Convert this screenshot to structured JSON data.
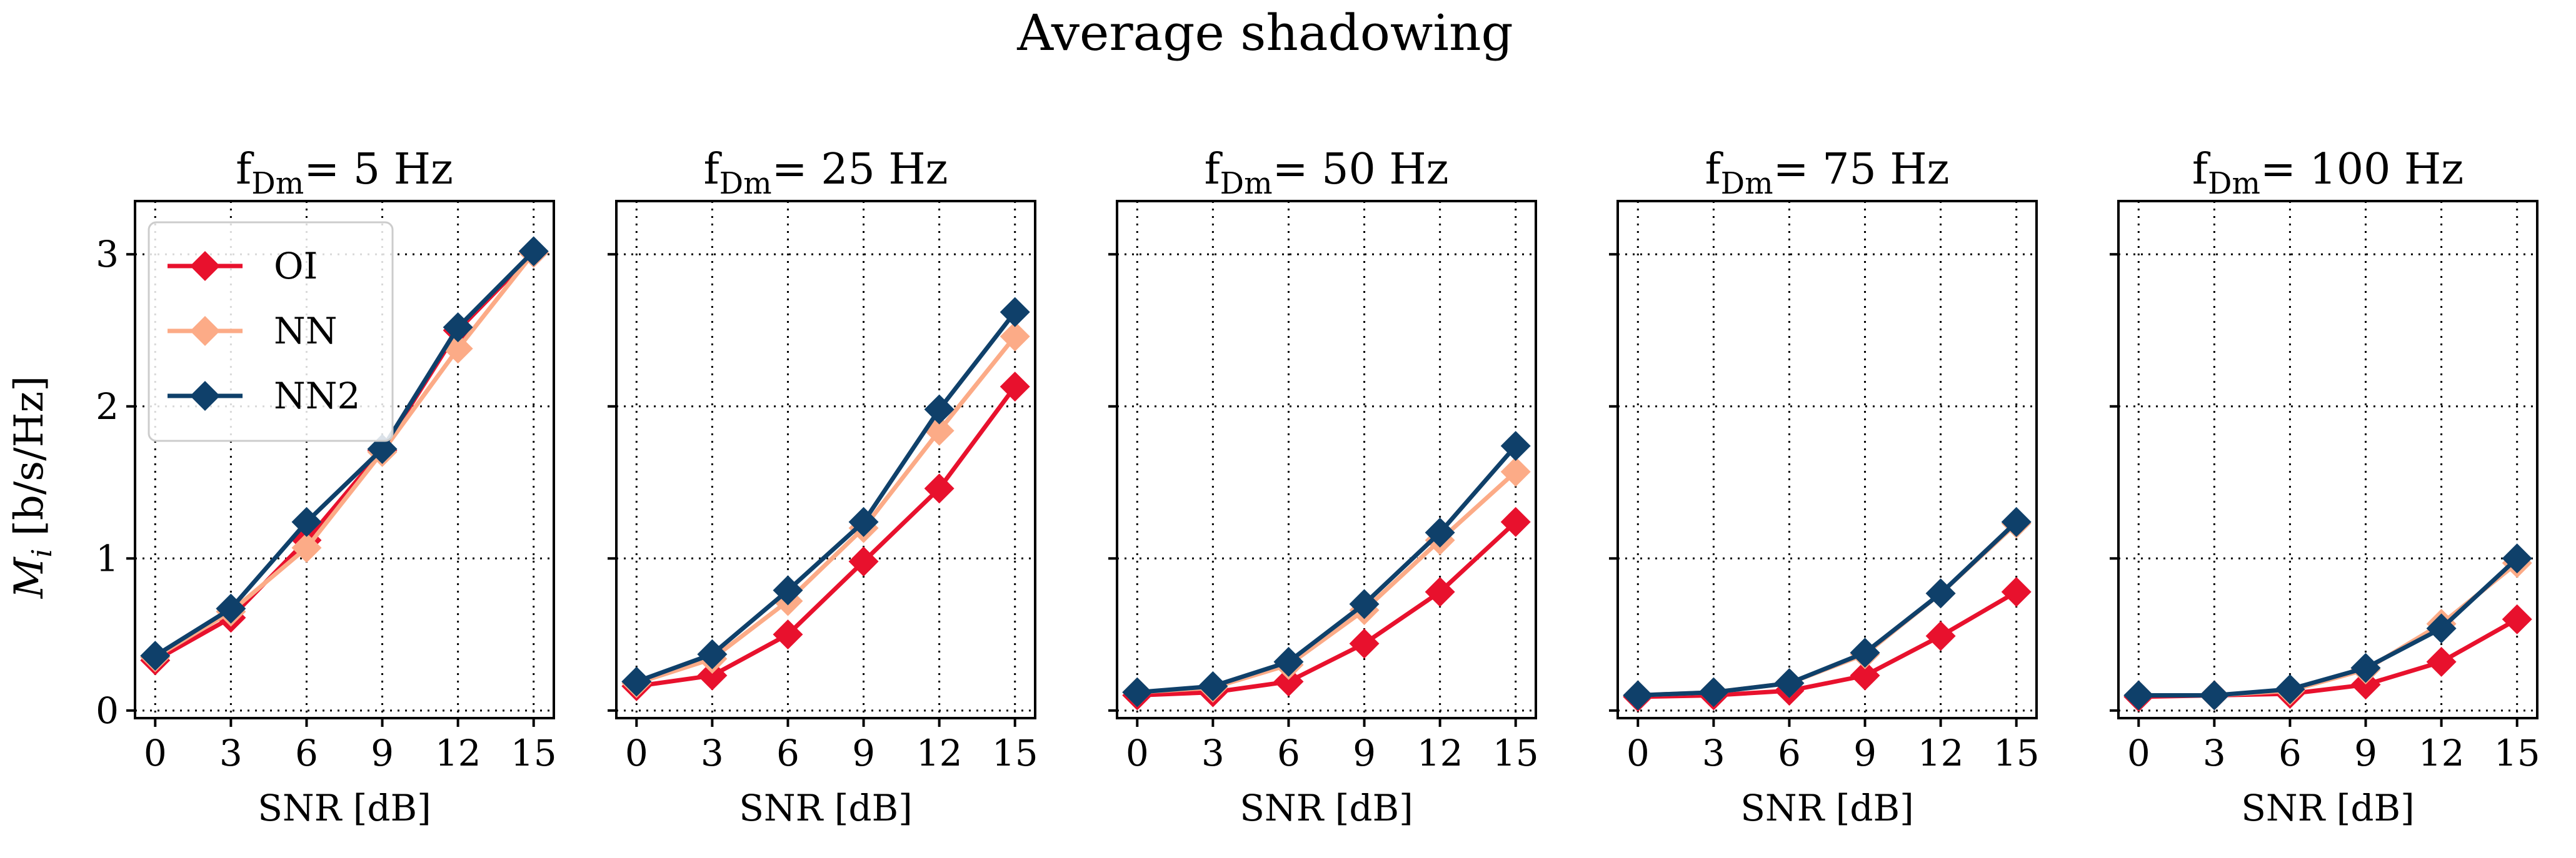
{
  "chart_data": {
    "type": "line",
    "suptitle": "Average shadowing",
    "title_prefix": "f",
    "title_subscript": "Dm",
    "xlabel": "SNR [dB]",
    "ylabel_var": "M",
    "ylabel_sub": "i",
    "ylabel_unit": " [b/s/Hz]",
    "x": [
      0,
      3,
      6,
      9,
      12,
      15
    ],
    "xticks": [
      "0",
      "3",
      "6",
      "9",
      "12",
      "15"
    ],
    "yticks": [
      "0",
      "1",
      "2",
      "3"
    ],
    "ylim": [
      -0.05,
      3.35
    ],
    "xlim": [
      -0.8,
      15.8
    ],
    "grid": true,
    "legend_position": "upper-left (first panel)",
    "colors": {
      "OI": "#e8112d",
      "NN": "#fcab87",
      "NN2": "#0f406a"
    },
    "legend": [
      "OI",
      "NN",
      "NN2"
    ],
    "panels": [
      {
        "title_value": "= 5 Hz",
        "series": [
          {
            "name": "OI",
            "values": [
              0.33,
              0.61,
              1.12,
              1.71,
              2.5,
              3.01
            ]
          },
          {
            "name": "NN",
            "values": [
              0.35,
              0.65,
              1.07,
              1.7,
              2.38,
              3.01
            ]
          },
          {
            "name": "NN2",
            "values": [
              0.36,
              0.67,
              1.24,
              1.72,
              2.52,
              3.02
            ]
          }
        ]
      },
      {
        "title_value": "= 25 Hz",
        "series": [
          {
            "name": "OI",
            "values": [
              0.16,
              0.23,
              0.5,
              0.98,
              1.46,
              2.13
            ]
          },
          {
            "name": "NN",
            "values": [
              0.18,
              0.34,
              0.72,
              1.2,
              1.84,
              2.46
            ]
          },
          {
            "name": "NN2",
            "values": [
              0.19,
              0.37,
              0.79,
              1.24,
              1.98,
              2.62
            ]
          }
        ]
      },
      {
        "title_value": "= 50 Hz",
        "series": [
          {
            "name": "OI",
            "values": [
              0.1,
              0.12,
              0.19,
              0.44,
              0.78,
              1.24
            ]
          },
          {
            "name": "NN",
            "values": [
              0.12,
              0.15,
              0.3,
              0.66,
              1.12,
              1.57
            ]
          },
          {
            "name": "NN2",
            "values": [
              0.12,
              0.16,
              0.32,
              0.7,
              1.17,
              1.74
            ]
          }
        ]
      },
      {
        "title_value": "= 75 Hz",
        "series": [
          {
            "name": "OI",
            "values": [
              0.09,
              0.1,
              0.13,
              0.23,
              0.49,
              0.78
            ]
          },
          {
            "name": "NN",
            "values": [
              0.1,
              0.12,
              0.18,
              0.37,
              0.77,
              1.23
            ]
          },
          {
            "name": "NN2",
            "values": [
              0.1,
              0.12,
              0.18,
              0.38,
              0.77,
              1.24
            ]
          }
        ]
      },
      {
        "title_value": "= 100 Hz",
        "series": [
          {
            "name": "OI",
            "values": [
              0.09,
              0.1,
              0.11,
              0.17,
              0.32,
              0.6
            ]
          },
          {
            "name": "NN",
            "values": [
              0.1,
              0.1,
              0.13,
              0.27,
              0.57,
              0.97
            ]
          },
          {
            "name": "NN2",
            "values": [
              0.1,
              0.1,
              0.14,
              0.28,
              0.54,
              1.0
            ]
          }
        ]
      }
    ]
  }
}
